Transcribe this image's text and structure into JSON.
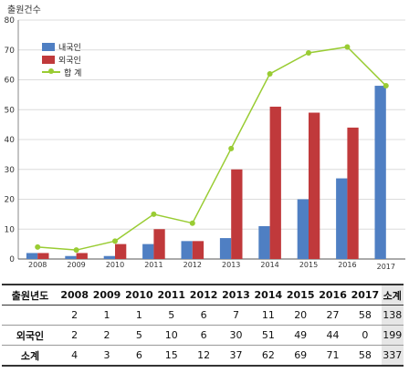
{
  "chart_data": {
    "type": "bar",
    "ylabel": "출원건수",
    "ylim": [
      0,
      80
    ],
    "yticks": [
      0,
      10,
      20,
      30,
      40,
      50,
      60,
      70,
      80
    ],
    "grid": true,
    "legend_position": "top-left",
    "categories": [
      "2008",
      "2009",
      "2010",
      "2011",
      "2012",
      "2013",
      "2014",
      "2015",
      "2016",
      "2017"
    ],
    "series": [
      {
        "name": "내국인",
        "type": "bar",
        "color": "#4f7fc3",
        "values": [
          2,
          1,
          1,
          5,
          6,
          7,
          11,
          20,
          27,
          58
        ]
      },
      {
        "name": "외국인",
        "type": "bar",
        "color": "#c0393b",
        "values": [
          2,
          2,
          5,
          10,
          6,
          30,
          51,
          49,
          44,
          0
        ]
      },
      {
        "name": "합 계",
        "type": "line",
        "color": "#99cc33",
        "values": [
          4,
          3,
          6,
          15,
          12,
          37,
          62,
          69,
          71,
          58
        ]
      }
    ]
  },
  "table": {
    "headers": [
      "출원년도",
      "2008",
      "2009",
      "2010",
      "2011",
      "2012",
      "2013",
      "2014",
      "2015",
      "2016",
      "2017",
      "소계"
    ],
    "rows": [
      {
        "label": "",
        "cells": [
          "2",
          "1",
          "1",
          "5",
          "6",
          "7",
          "11",
          "20",
          "27",
          "58",
          "138"
        ]
      },
      {
        "label": "외국인",
        "cells": [
          "2",
          "2",
          "5",
          "10",
          "6",
          "30",
          "51",
          "49",
          "44",
          "0",
          "199"
        ]
      },
      {
        "label": "소계",
        "cells": [
          "4",
          "3",
          "6",
          "15",
          "12",
          "37",
          "62",
          "69",
          "71",
          "58",
          "337"
        ]
      }
    ]
  }
}
